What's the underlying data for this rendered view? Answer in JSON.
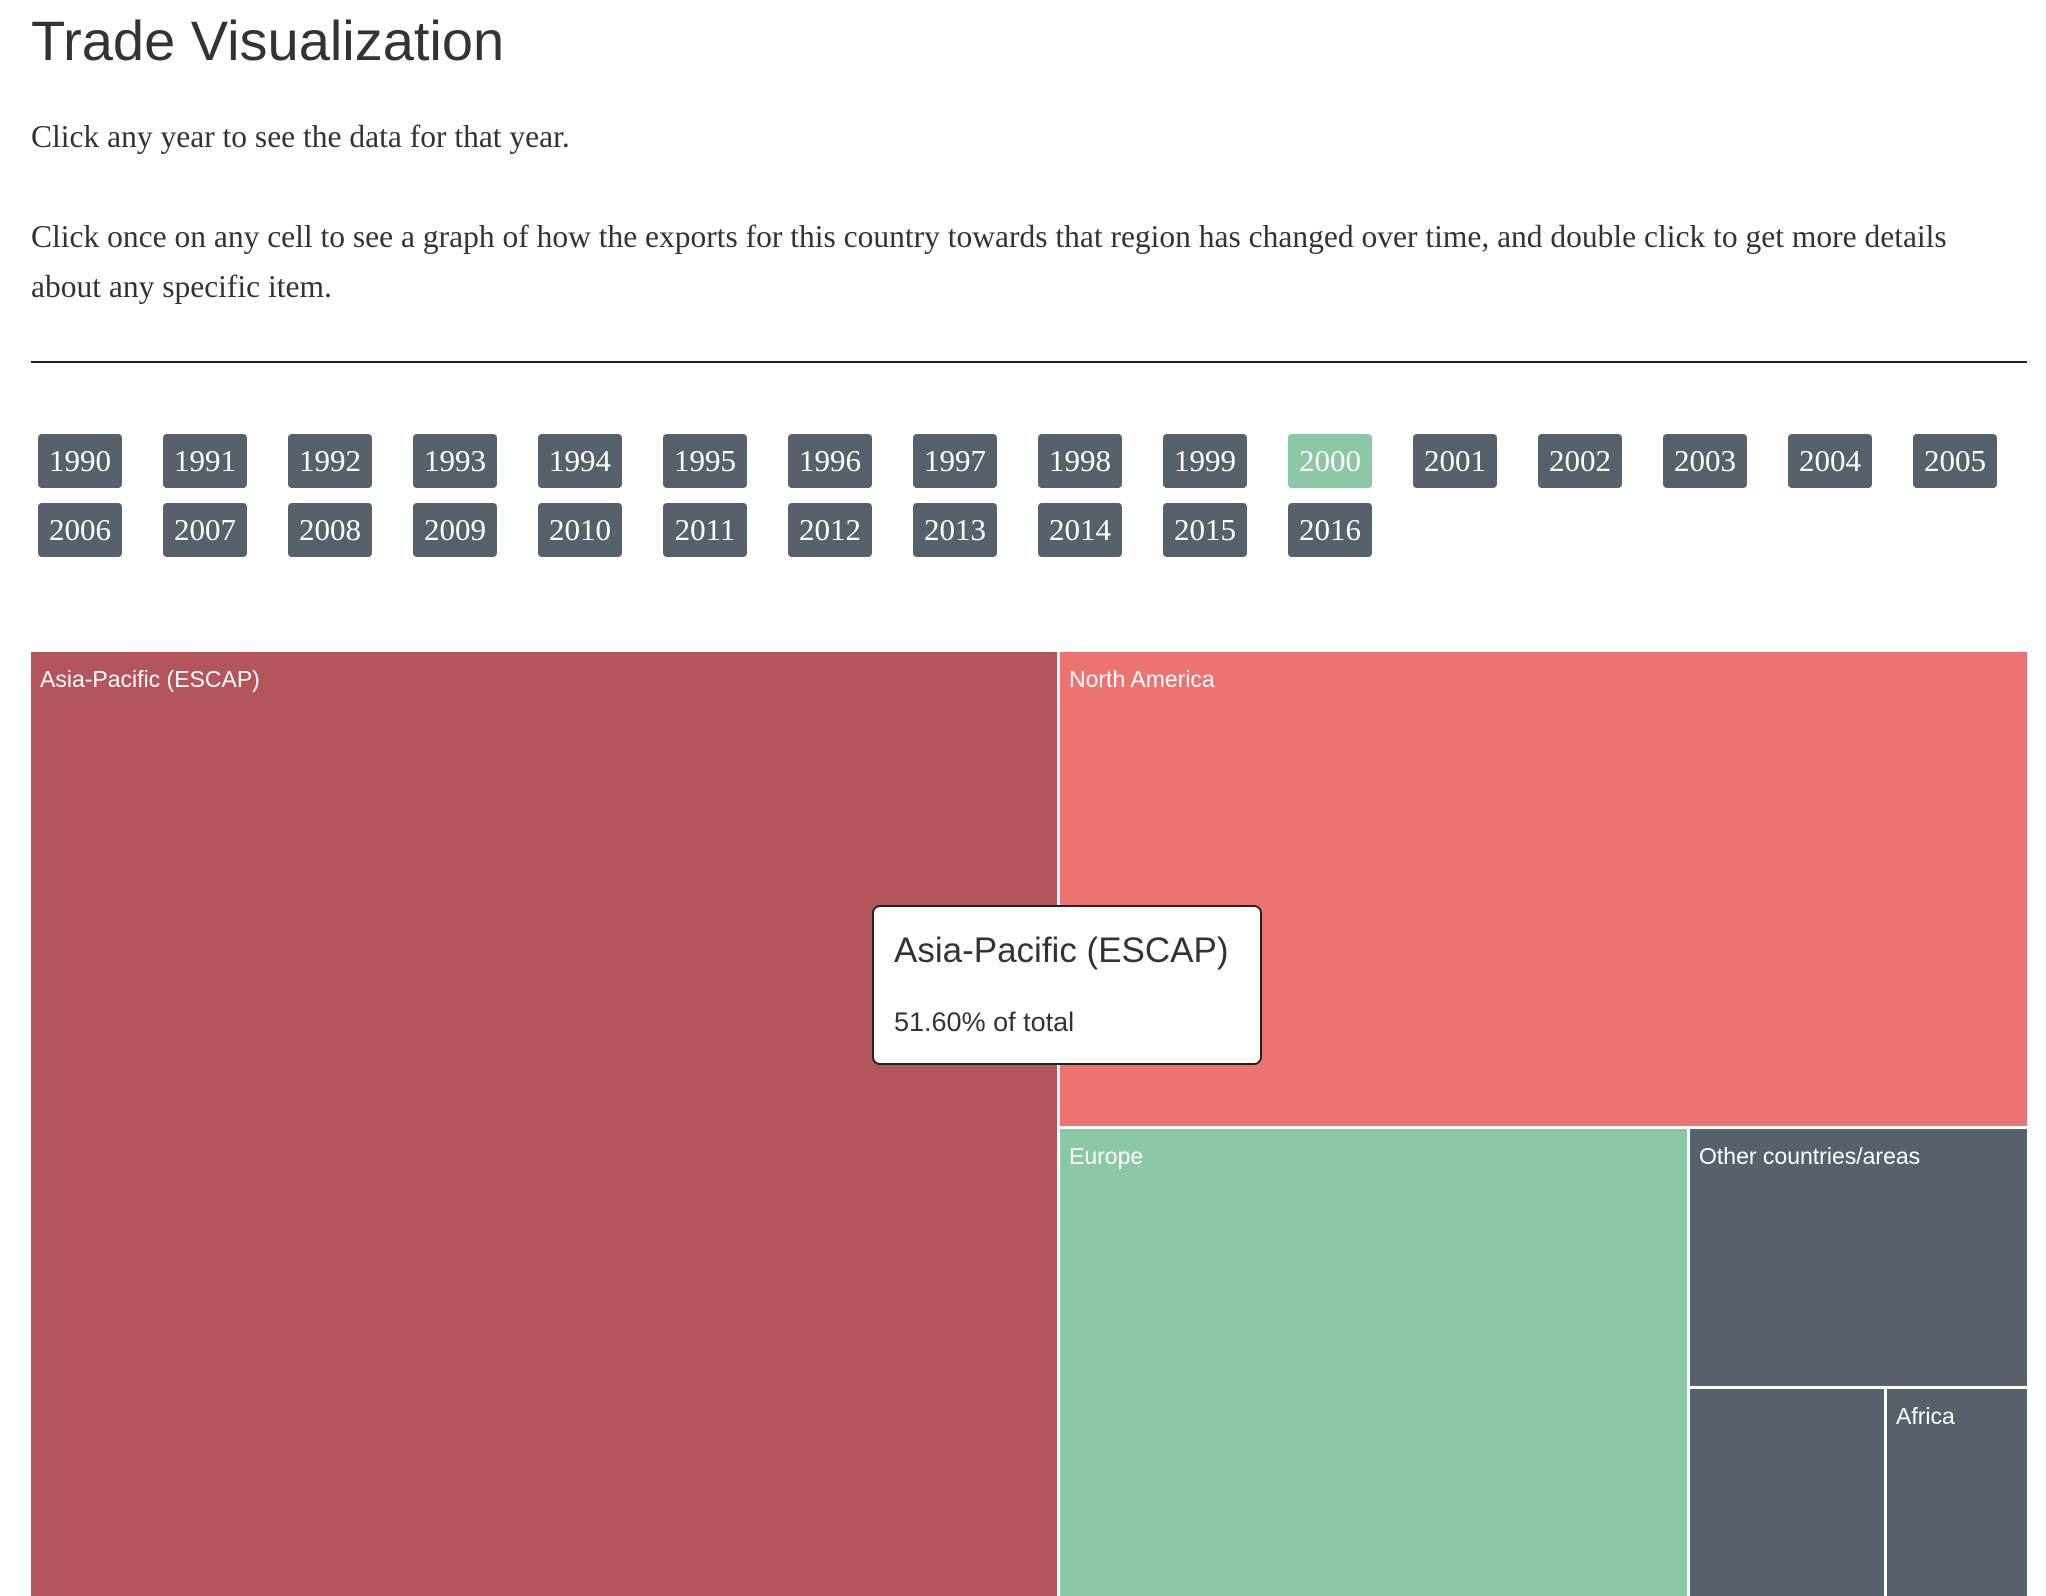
{
  "page": {
    "title": "Trade Visualization",
    "intro_1": "Click any year to see the data for that year.",
    "intro_2": "Click once on any cell to see a graph of how the exports for this country towards that region has changed over time, and double click to get more details about any specific item."
  },
  "years": {
    "labels": [
      "1990",
      "1991",
      "1992",
      "1993",
      "1994",
      "1995",
      "1996",
      "1997",
      "1998",
      "1999",
      "2000",
      "2001",
      "2002",
      "2003",
      "2004",
      "2005",
      "2006",
      "2007",
      "2008",
      "2009",
      "2010",
      "2011",
      "2012",
      "2013",
      "2014",
      "2015",
      "2016"
    ],
    "selected": "2000"
  },
  "treemap": {
    "cells": [
      {
        "label": "Asia-Pacific (ESCAP)",
        "color": "#b4555b"
      },
      {
        "label": "North America",
        "color": "#ec7371"
      },
      {
        "label": "Europe",
        "color": "#8bc8a5"
      },
      {
        "label": "Other countries/areas",
        "color": "#56616c"
      },
      {
        "label": "",
        "color": "#56616c"
      },
      {
        "label": "Africa",
        "color": "#56616c"
      }
    ]
  },
  "tooltip": {
    "title": "Asia-Pacific (ESCAP)",
    "value": "51.60% of total"
  }
}
